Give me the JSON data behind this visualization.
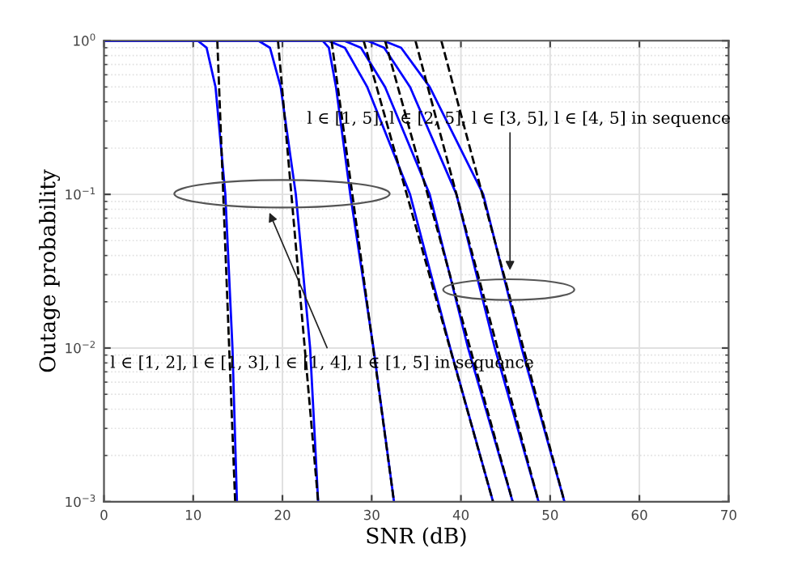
{
  "chart_data": {
    "type": "line",
    "xlabel": "SNR (dB)",
    "ylabel": "Outage probability",
    "log": "y",
    "xlim": [
      0,
      70
    ],
    "xticks": [
      0,
      10,
      20,
      30,
      40,
      50,
      60,
      70
    ],
    "ylim": [
      0.001,
      1
    ],
    "yticks": [
      {
        "value": 0.001,
        "label": "10$^{−3}$"
      },
      {
        "value": 0.01,
        "label": "10$^{−2}$"
      },
      {
        "value": 0.1,
        "label": "10$^{−1}$"
      },
      {
        "value": 1,
        "label": "10$^{0}$"
      }
    ],
    "grid": true,
    "marker": "none",
    "annotations": [
      {
        "text": "l ∈ [1, 5], l ∈ [2, 5], l ∈ [3, 5], l ∈ [4, 5] in sequence",
        "x": 45.5,
        "y": 0.03
      },
      "l ∈ [1, 2], l ∈ [1, 3], l ∈ [1, 4], l ∈ [1, 5] in sequence"
    ],
    "series": [
      {
        "color": "#0000ff",
        "line_style": "solid",
        "x": [
          0,
          10.5,
          11.5,
          12.5,
          13.6,
          14.4,
          14.9
        ],
        "values": [
          1,
          1,
          0.9,
          0.5,
          0.1,
          0.01,
          0.001
        ]
      },
      {
        "color": "#0000ff",
        "line_style": "solid",
        "x": [
          0,
          17.3,
          18.6,
          19.8,
          21.5,
          23.1,
          24.0
        ],
        "values": [
          1,
          1,
          0.9,
          0.5,
          0.1,
          0.01,
          0.001
        ]
      },
      {
        "color": "#0000ff",
        "line_style": "solid",
        "x": [
          0,
          24.5,
          25.2,
          26.0,
          27.6,
          30.2,
          32.5
        ],
        "values": [
          1,
          1,
          0.9,
          0.5,
          0.1,
          0.01,
          0.001
        ]
      },
      {
        "color": "#0000ff",
        "line_style": "solid",
        "x": [
          0,
          25.1,
          27.0,
          29.5,
          34.3,
          38.8,
          43.6
        ],
        "values": [
          1,
          1,
          0.9,
          0.5,
          0.1,
          0.01,
          0.001
        ]
      },
      {
        "color": "#0000ff",
        "line_style": "solid",
        "x": [
          0,
          26.9,
          28.8,
          31.5,
          36.5,
          40.8,
          45.8
        ],
        "values": [
          1,
          1,
          0.9,
          0.5,
          0.1,
          0.01,
          0.001
        ]
      },
      {
        "color": "#0000ff",
        "line_style": "solid",
        "x": [
          0,
          29.5,
          31.4,
          34.3,
          39.5,
          43.8,
          48.7
        ],
        "values": [
          1,
          1,
          0.9,
          0.5,
          0.1,
          0.01,
          0.001
        ]
      },
      {
        "color": "#0000ff",
        "line_style": "solid",
        "x": [
          0,
          31.3,
          33.3,
          36.5,
          42.5,
          46.8,
          51.6
        ],
        "values": [
          1,
          1,
          0.9,
          0.5,
          0.1,
          0.01,
          0.001
        ]
      },
      {
        "color": "#000000",
        "line_style": "dashed",
        "x": [
          12.7,
          14.7
        ],
        "values": [
          1,
          0.001
        ]
      },
      {
        "color": "#000000",
        "line_style": "dashed",
        "x": [
          19.5,
          24.0
        ],
        "values": [
          1,
          0.001
        ]
      },
      {
        "color": "#000000",
        "line_style": "dashed",
        "x": [
          25.5,
          32.5
        ],
        "values": [
          1,
          0.001
        ]
      },
      {
        "color": "#000000",
        "line_style": "dashed",
        "x": [
          29.1,
          43.6
        ],
        "values": [
          1,
          0.001
        ]
      },
      {
        "color": "#000000",
        "line_style": "dashed",
        "x": [
          31.5,
          45.8
        ],
        "values": [
          1,
          0.001
        ]
      },
      {
        "color": "#000000",
        "line_style": "dashed",
        "x": [
          34.9,
          48.7
        ],
        "values": [
          1,
          0.001
        ]
      },
      {
        "color": "#000000",
        "line_style": "dashed",
        "x": [
          37.8,
          51.6
        ],
        "values": [
          1,
          0.001
        ]
      }
    ]
  }
}
